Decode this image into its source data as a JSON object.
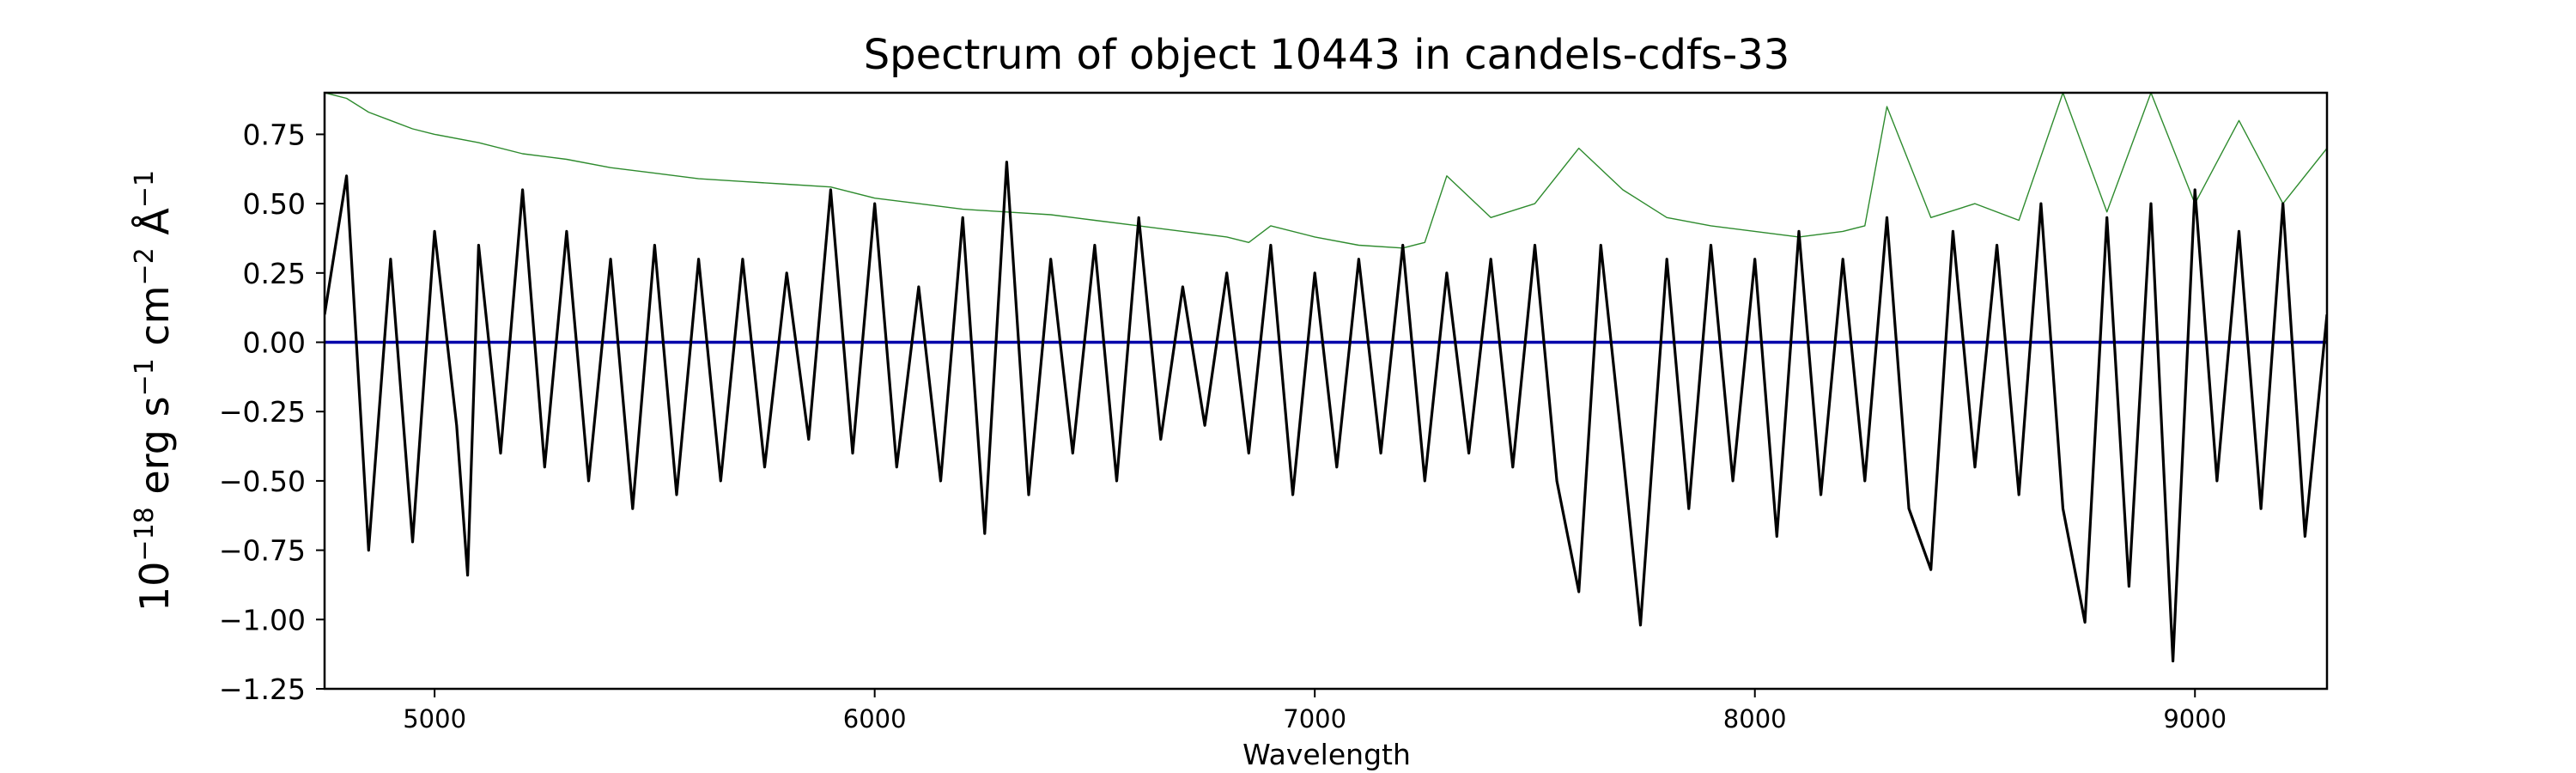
{
  "chart_data": {
    "type": "line",
    "title": "Spectrum of object 10443 in candels-cdfs-33",
    "xlabel": "Wavelength",
    "ylabel": {
      "base": "10",
      "exp1": "−18",
      "erg": " erg s",
      "exp2": "−1",
      "cm": " cm",
      "exp3": "−2",
      "ang": " Å",
      "exp4": "−1"
    },
    "xlim": [
      4750,
      9300
    ],
    "ylim": [
      -1.25,
      0.9
    ],
    "x_ticks": [
      5000,
      6000,
      7000,
      8000,
      9000
    ],
    "y_ticks": [
      0.75,
      0.5,
      0.25,
      0.0,
      -0.25,
      -0.5,
      -0.75,
      -1.0,
      -1.25
    ],
    "x_tick_labels": [
      "5000",
      "6000",
      "7000",
      "8000",
      "9000"
    ],
    "y_tick_labels": [
      "0.75",
      "0.50",
      "0.25",
      "0.00",
      "−0.25",
      "−0.50",
      "−0.75",
      "−1.00",
      "−1.25"
    ],
    "grid": false,
    "series": [
      {
        "role": "flux",
        "color": "#000000",
        "x": [
          4750,
          4800,
          4850,
          4900,
          4950,
          5000,
          5050,
          5075,
          5100,
          5150,
          5200,
          5250,
          5300,
          5350,
          5400,
          5450,
          5500,
          5550,
          5600,
          5650,
          5700,
          5750,
          5800,
          5850,
          5900,
          5950,
          6000,
          6050,
          6100,
          6150,
          6200,
          6250,
          6300,
          6350,
          6400,
          6450,
          6500,
          6550,
          6600,
          6650,
          6700,
          6750,
          6800,
          6850,
          6900,
          6950,
          7000,
          7050,
          7100,
          7150,
          7200,
          7250,
          7300,
          7350,
          7400,
          7450,
          7500,
          7550,
          7600,
          7650,
          7700,
          7740,
          7800,
          7850,
          7900,
          7950,
          8000,
          8050,
          8100,
          8150,
          8200,
          8250,
          8300,
          8350,
          8400,
          8450,
          8500,
          8550,
          8600,
          8650,
          8700,
          8750,
          8800,
          8850,
          8900,
          8950,
          9000,
          9050,
          9100,
          9150,
          9200,
          9250,
          9300
        ],
        "y": [
          0.1,
          0.6,
          -0.75,
          0.3,
          -0.72,
          0.4,
          -0.3,
          -0.84,
          0.35,
          -0.4,
          0.55,
          -0.45,
          0.4,
          -0.5,
          0.3,
          -0.6,
          0.35,
          -0.55,
          0.3,
          -0.5,
          0.3,
          -0.45,
          0.25,
          -0.35,
          0.55,
          -0.4,
          0.5,
          -0.45,
          0.2,
          -0.5,
          0.45,
          -0.69,
          0.65,
          -0.55,
          0.3,
          -0.4,
          0.35,
          -0.5,
          0.45,
          -0.35,
          0.2,
          -0.3,
          0.25,
          -0.4,
          0.35,
          -0.55,
          0.25,
          -0.45,
          0.3,
          -0.4,
          0.35,
          -0.5,
          0.25,
          -0.4,
          0.3,
          -0.45,
          0.35,
          -0.5,
          -0.9,
          0.35,
          -0.4,
          -1.02,
          0.3,
          -0.6,
          0.35,
          -0.5,
          0.3,
          -0.7,
          0.4,
          -0.55,
          0.3,
          -0.5,
          0.45,
          -0.6,
          -0.82,
          0.4,
          -0.45,
          0.35,
          -0.55,
          0.5,
          -0.6,
          -1.01,
          0.45,
          -0.88,
          0.5,
          -1.15,
          0.55,
          -0.5,
          0.4,
          -0.6,
          0.5,
          -0.7,
          0.1
        ]
      },
      {
        "role": "error",
        "color": "#2e8b2e",
        "x": [
          4750,
          4800,
          4850,
          4900,
          4950,
          5000,
          5100,
          5200,
          5300,
          5400,
          5500,
          5600,
          5700,
          5800,
          5900,
          6000,
          6100,
          6200,
          6300,
          6400,
          6500,
          6600,
          6700,
          6800,
          6850,
          6900,
          7000,
          7100,
          7200,
          7250,
          7300,
          7400,
          7500,
          7600,
          7700,
          7800,
          7900,
          8000,
          8100,
          8200,
          8250,
          8300,
          8400,
          8500,
          8600,
          8700,
          8800,
          8900,
          9000,
          9100,
          9200,
          9300
        ],
        "y": [
          0.9,
          0.88,
          0.83,
          0.8,
          0.77,
          0.75,
          0.72,
          0.68,
          0.66,
          0.63,
          0.61,
          0.59,
          0.58,
          0.57,
          0.56,
          0.52,
          0.5,
          0.48,
          0.47,
          0.46,
          0.44,
          0.42,
          0.4,
          0.38,
          0.36,
          0.42,
          0.38,
          0.35,
          0.34,
          0.36,
          0.6,
          0.45,
          0.5,
          0.7,
          0.55,
          0.45,
          0.42,
          0.4,
          0.38,
          0.4,
          0.42,
          0.85,
          0.45,
          0.5,
          0.44,
          0.9,
          0.47,
          0.9,
          0.5,
          0.8,
          0.5,
          0.7
        ]
      },
      {
        "role": "model",
        "color": "#0000aa",
        "x": [
          4750,
          9300
        ],
        "y": [
          0.0,
          0.0
        ]
      }
    ]
  }
}
